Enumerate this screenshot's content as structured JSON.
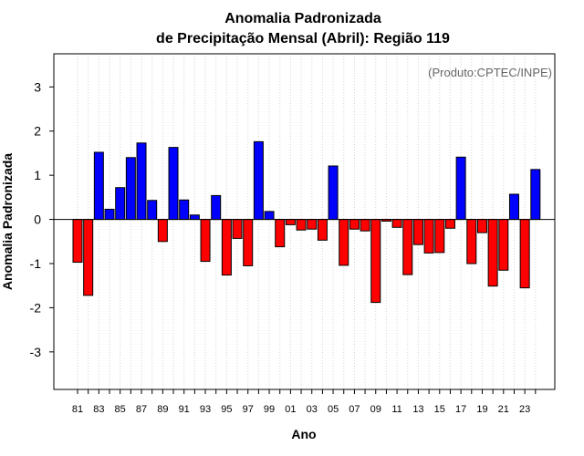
{
  "chart_data": {
    "type": "bar",
    "title": [
      "Anomalia Padronizada",
      "de Precipitação Mensal (Abril): Região 119"
    ],
    "xlabel": "Ano",
    "ylabel": "Anomalia Padronizada",
    "annotation": "(Produto:CPTEC/INPE)",
    "ylim": [
      -3.85,
      3.75
    ],
    "yticks": [
      -3,
      -2,
      -1,
      0,
      1,
      2,
      3
    ],
    "grid": true,
    "colors": {
      "positive": "#0000ff",
      "negative": "#ff0000",
      "grid": "#d3d3d3",
      "axis": "#000000",
      "annotation": "#666666"
    },
    "years": [
      1981,
      1982,
      1983,
      1984,
      1985,
      1986,
      1987,
      1988,
      1989,
      1990,
      1991,
      1992,
      1993,
      1994,
      1995,
      1996,
      1997,
      1998,
      1999,
      2000,
      2001,
      2002,
      2003,
      2004,
      2005,
      2006,
      2007,
      2008,
      2009,
      2010,
      2011,
      2012,
      2013,
      2014,
      2015,
      2016,
      2017,
      2018,
      2019,
      2020,
      2021,
      2022,
      2023,
      2024
    ],
    "categories": [
      "81",
      "",
      "83",
      "",
      "85",
      "",
      "87",
      "",
      "89",
      "",
      "91",
      "",
      "93",
      "",
      "95",
      "",
      "97",
      "",
      "99",
      "",
      "01",
      "",
      "03",
      "",
      "05",
      "",
      "07",
      "",
      "09",
      "",
      "11",
      "",
      "13",
      "",
      "15",
      "",
      "17",
      "",
      "19",
      "",
      "21",
      "",
      "23",
      ""
    ],
    "values": [
      -0.97,
      -1.72,
      1.52,
      0.23,
      0.72,
      1.4,
      1.73,
      0.43,
      -0.5,
      1.63,
      0.44,
      0.1,
      -0.95,
      0.54,
      -1.26,
      -0.43,
      -1.05,
      1.76,
      0.18,
      -0.62,
      -0.12,
      -0.24,
      -0.22,
      -0.47,
      1.21,
      -1.04,
      -0.22,
      -0.26,
      -1.88,
      -0.04,
      -0.18,
      -1.25,
      -0.57,
      -0.76,
      -0.75,
      -0.2,
      1.41,
      -1.0,
      -0.3,
      -1.51,
      -1.15,
      0.57,
      -1.55,
      1.13
    ]
  }
}
